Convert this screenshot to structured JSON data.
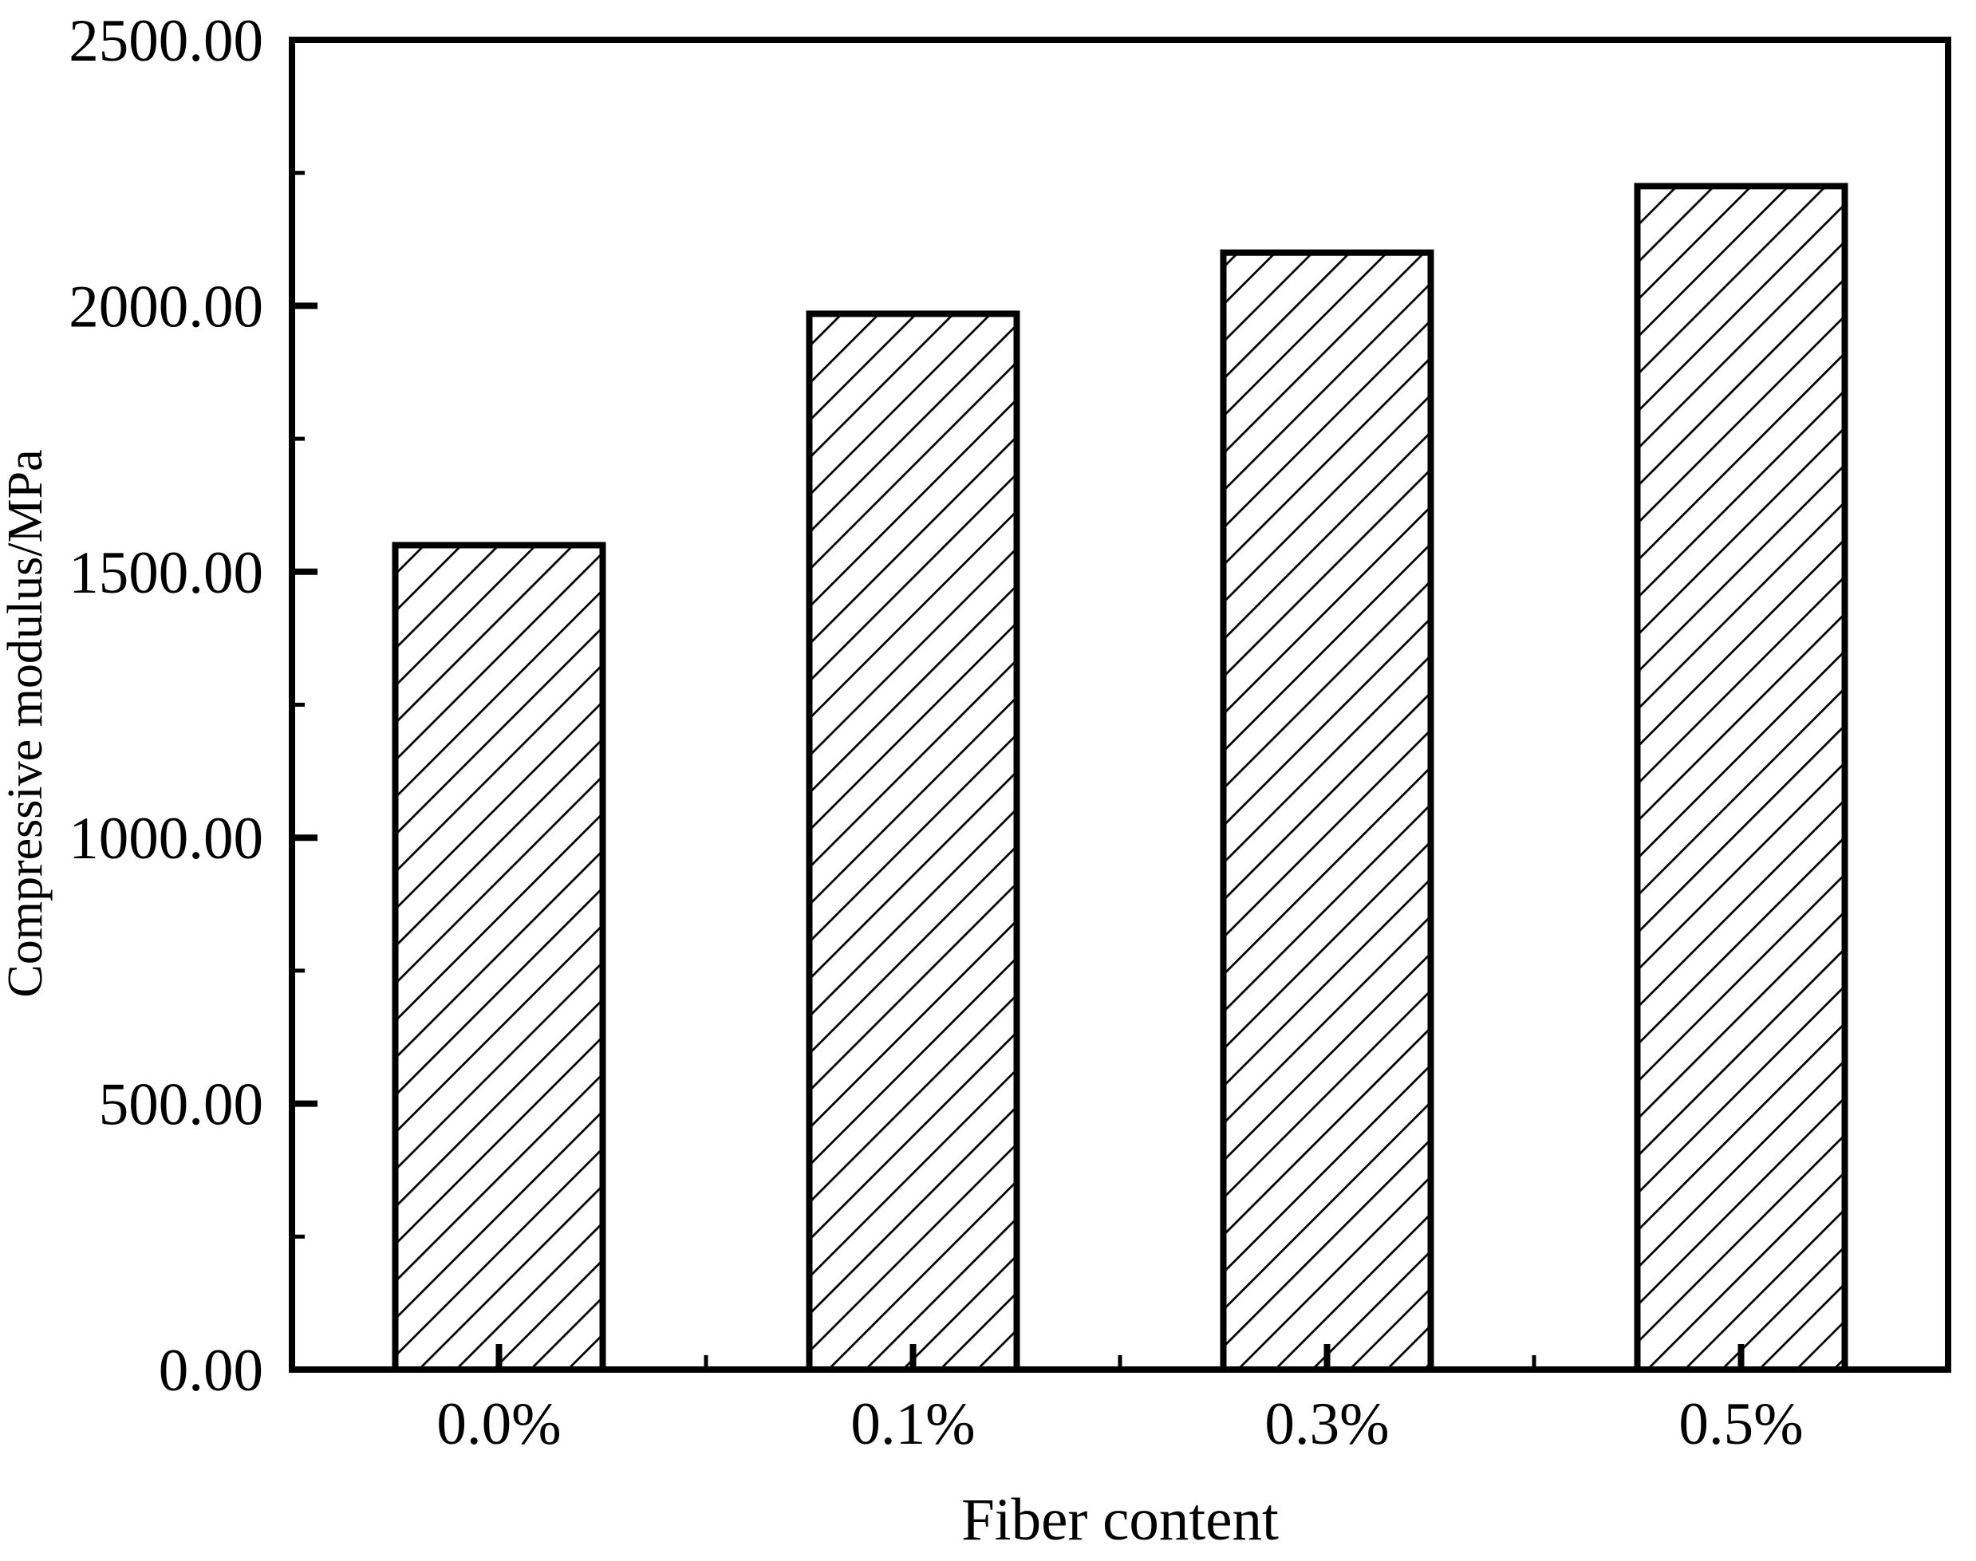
{
  "figure": {
    "background": "#ffffff",
    "foreground": "#000000"
  },
  "chart_data": {
    "type": "bar",
    "title": "",
    "categories": [
      "0.0%",
      "0.1%",
      "0.3%",
      "0.5%"
    ],
    "values": [
      1550,
      1985,
      2100,
      2225
    ],
    "xlabel": "Fiber content",
    "ylabel": "Compressive modulus/MPa",
    "ylim": [
      0,
      2500
    ],
    "y_major_step": 500,
    "y_minor_step": 250,
    "y_tick_labels": [
      "0.00",
      "500.00",
      "1000.00",
      "1500.00",
      "2000.00",
      "2500.00"
    ],
    "x_tick_labels": [
      "0.0%",
      "0.1%",
      "0.3%",
      "0.5%"
    ],
    "legend": "none",
    "grid": false,
    "bar_style": {
      "fill_pattern": "diagonal-hatch",
      "stroke": "#000000",
      "fill_background": "#ffffff"
    }
  }
}
